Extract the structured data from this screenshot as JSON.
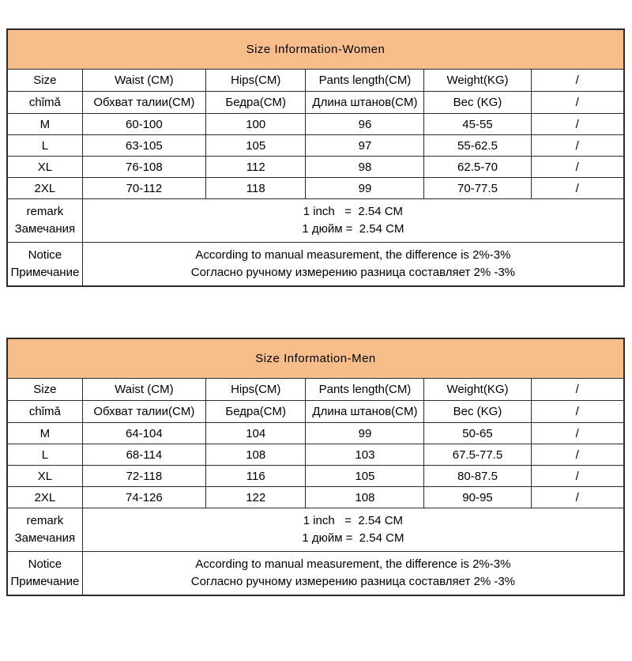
{
  "colors": {
    "title_bg": "#f7be8c",
    "border": "#2b2b2b",
    "text": "#000000"
  },
  "women": {
    "title": "Size Information-Women",
    "headers": [
      "Size",
      "Waist (CM)",
      "Hips(CM)",
      "Pants length(CM)",
      "Weight(KG)",
      "/"
    ],
    "headers_localized": [
      "chǐmǎ",
      "Обхват талии(CM)",
      "Бедра(CM)",
      "Длина штанов(CM)",
      "Вес (KG)",
      "/"
    ],
    "rows": [
      [
        "M",
        "60-100",
        "100",
        "96",
        "45-55",
        "/"
      ],
      [
        "L",
        "63-105",
        "105",
        "97",
        "55-62.5",
        "/"
      ],
      [
        "XL",
        "76-108",
        "112",
        "98",
        "62.5-70",
        "/"
      ],
      [
        "2XL",
        "70-112",
        "118",
        "99",
        "70-77.5",
        "/"
      ]
    ],
    "remark": {
      "label_en": "remark",
      "label_ru": "Замечания",
      "line_en": "1 inch   =  2.54 CM",
      "line_ru": "1 дюйм =  2.54 CM"
    },
    "notice": {
      "label_en": "Notice",
      "label_ru": "Примечание",
      "line_en": "According to manual measurement, the difference is 2%-3%",
      "line_ru": "Согласно ручному измерению разница составляет 2% -3%"
    }
  },
  "men": {
    "title": "Size Information-Men",
    "headers": [
      "Size",
      "Waist (CM)",
      "Hips(CM)",
      "Pants length(CM)",
      "Weight(KG)",
      "/"
    ],
    "headers_localized": [
      "chǐmǎ",
      "Обхват талии(CM)",
      "Бедра(CM)",
      "Длина штанов(CM)",
      "Вес (KG)",
      "/"
    ],
    "rows": [
      [
        "M",
        "64-104",
        "104",
        "99",
        "50-65",
        "/"
      ],
      [
        "L",
        "68-114",
        "108",
        "103",
        "67.5-77.5",
        "/"
      ],
      [
        "XL",
        "72-118",
        "116",
        "105",
        "80-87.5",
        "/"
      ],
      [
        "2XL",
        "74-126",
        "122",
        "108",
        "90-95",
        "/"
      ]
    ],
    "remark": {
      "label_en": "remark",
      "label_ru": "Замечания",
      "line_en": "1 inch   =  2.54 CM",
      "line_ru": "1 дюйм =  2.54 CM"
    },
    "notice": {
      "label_en": "Notice",
      "label_ru": "Примечание",
      "line_en": "According to manual measurement, the difference is 2%-3%",
      "line_ru": "Согласно ручному измерению разница составляет 2% -3%"
    }
  }
}
